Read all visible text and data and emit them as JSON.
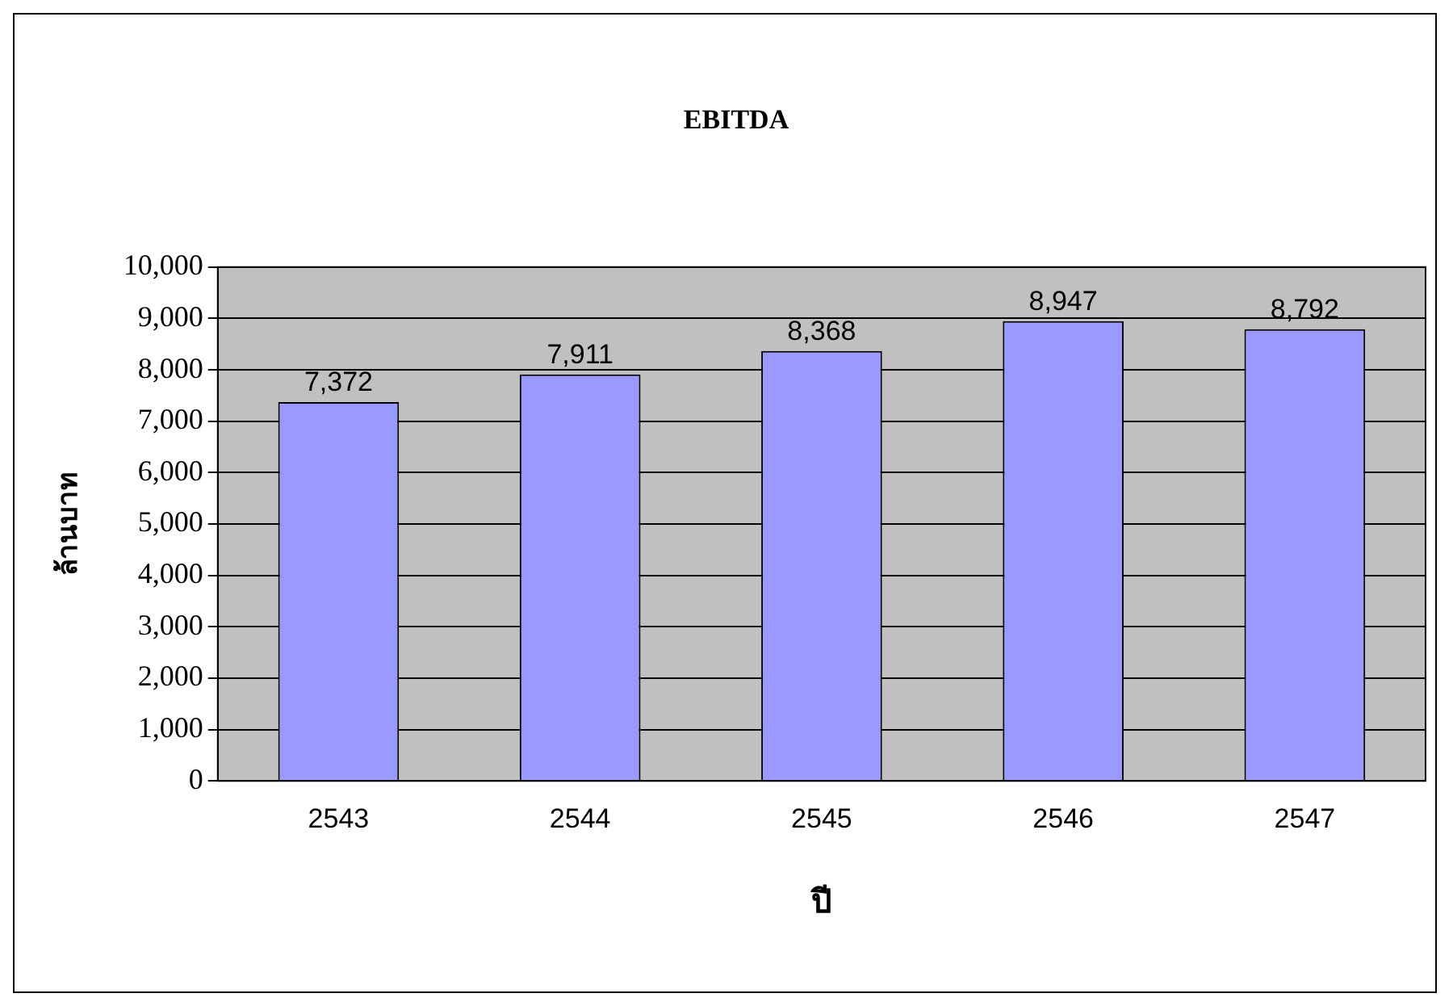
{
  "chart_data": {
    "type": "bar",
    "title": "EBITDA",
    "xlabel": "ปี",
    "ylabel": "ล้านบาท",
    "categories": [
      "2543",
      "2544",
      "2545",
      "2546",
      "2547"
    ],
    "values": [
      7372,
      7911,
      8368,
      8947,
      8792
    ],
    "value_labels": [
      "7,372",
      "7,911",
      "8,368",
      "8,947",
      "8,792"
    ],
    "color": "#9999ff",
    "ylim": [
      0,
      10000
    ],
    "yticks": [
      {
        "value": 0,
        "label": "0"
      },
      {
        "value": 1000,
        "label": "1,000"
      },
      {
        "value": 2000,
        "label": "2,000"
      },
      {
        "value": 3000,
        "label": "3,000"
      },
      {
        "value": 4000,
        "label": "4,000"
      },
      {
        "value": 5000,
        "label": "5,000"
      },
      {
        "value": 6000,
        "label": "6,000"
      },
      {
        "value": 7000,
        "label": "7,000"
      },
      {
        "value": 8000,
        "label": "8,000"
      },
      {
        "value": 9000,
        "label": "9,000"
      },
      {
        "value": 10000,
        "label": "10,000"
      }
    ],
    "grid": "y",
    "legend": false
  }
}
